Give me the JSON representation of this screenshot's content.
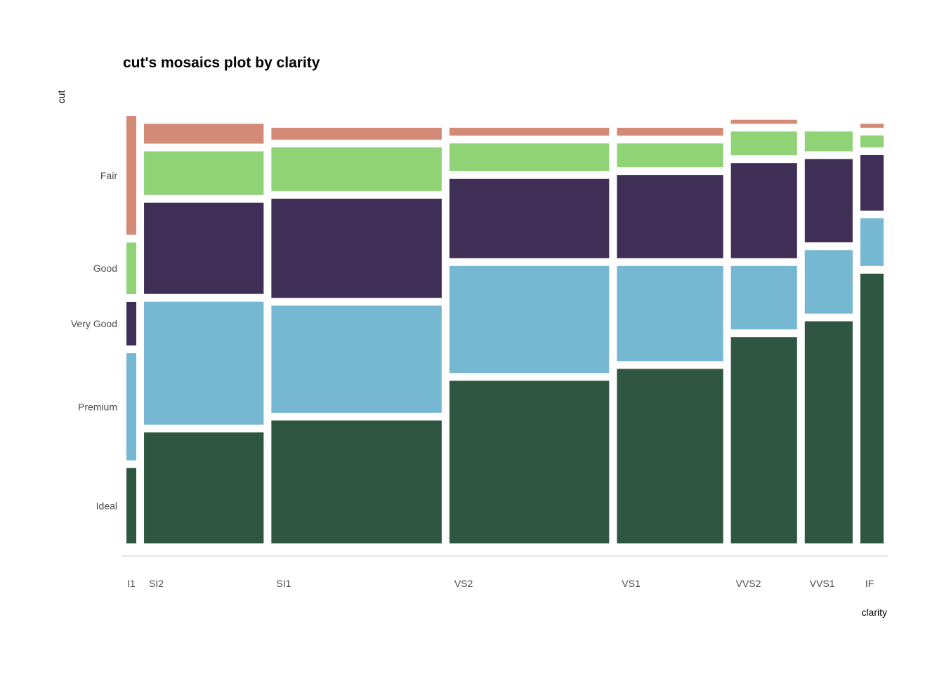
{
  "chart_data": {
    "type": "mosaic",
    "title": "cut's mosaics plot by clarity",
    "xlabel": "clarity",
    "ylabel": "cut",
    "x_categories": [
      "I1",
      "SI2",
      "SI1",
      "VS2",
      "VS1",
      "VVS2",
      "VVS1",
      "IF"
    ],
    "x_proportions": [
      0.014,
      0.17,
      0.242,
      0.227,
      0.151,
      0.094,
      0.068,
      0.033
    ],
    "y_categories": [
      "Ideal",
      "Premium",
      "Very Good",
      "Good",
      "Fair"
    ],
    "y_tick_labels": [
      "Ideal",
      "Premium",
      "Very Good",
      "Good",
      "Fair"
    ],
    "cells": [
      {
        "clarity": "I1",
        "proportions": [
          0.19,
          0.27,
          0.11,
          0.13,
          0.3
        ]
      },
      {
        "clarity": "SI2",
        "proportions": [
          0.28,
          0.31,
          0.23,
          0.11,
          0.05
        ]
      },
      {
        "clarity": "SI1",
        "proportions": [
          0.31,
          0.27,
          0.25,
          0.11,
          0.03
        ]
      },
      {
        "clarity": "VS2",
        "proportions": [
          0.41,
          0.27,
          0.2,
          0.07,
          0.02
        ]
      },
      {
        "clarity": "VS1",
        "proportions": [
          0.44,
          0.24,
          0.21,
          0.06,
          0.02
        ]
      },
      {
        "clarity": "VVS2",
        "proportions": [
          0.52,
          0.16,
          0.24,
          0.06,
          0.01
        ]
      },
      {
        "clarity": "VVS1",
        "proportions": [
          0.56,
          0.16,
          0.21,
          0.05,
          0.0
        ]
      },
      {
        "clarity": "IF",
        "proportions": [
          0.68,
          0.12,
          0.14,
          0.03,
          0.01
        ]
      }
    ],
    "colors": {
      "Ideal": "#2e5640",
      "Premium": "#76b7d1",
      "Very Good": "#3f2e55",
      "Good": "#8fd376",
      "Fair": "#d38a76"
    },
    "grid": false,
    "legend": "none"
  }
}
